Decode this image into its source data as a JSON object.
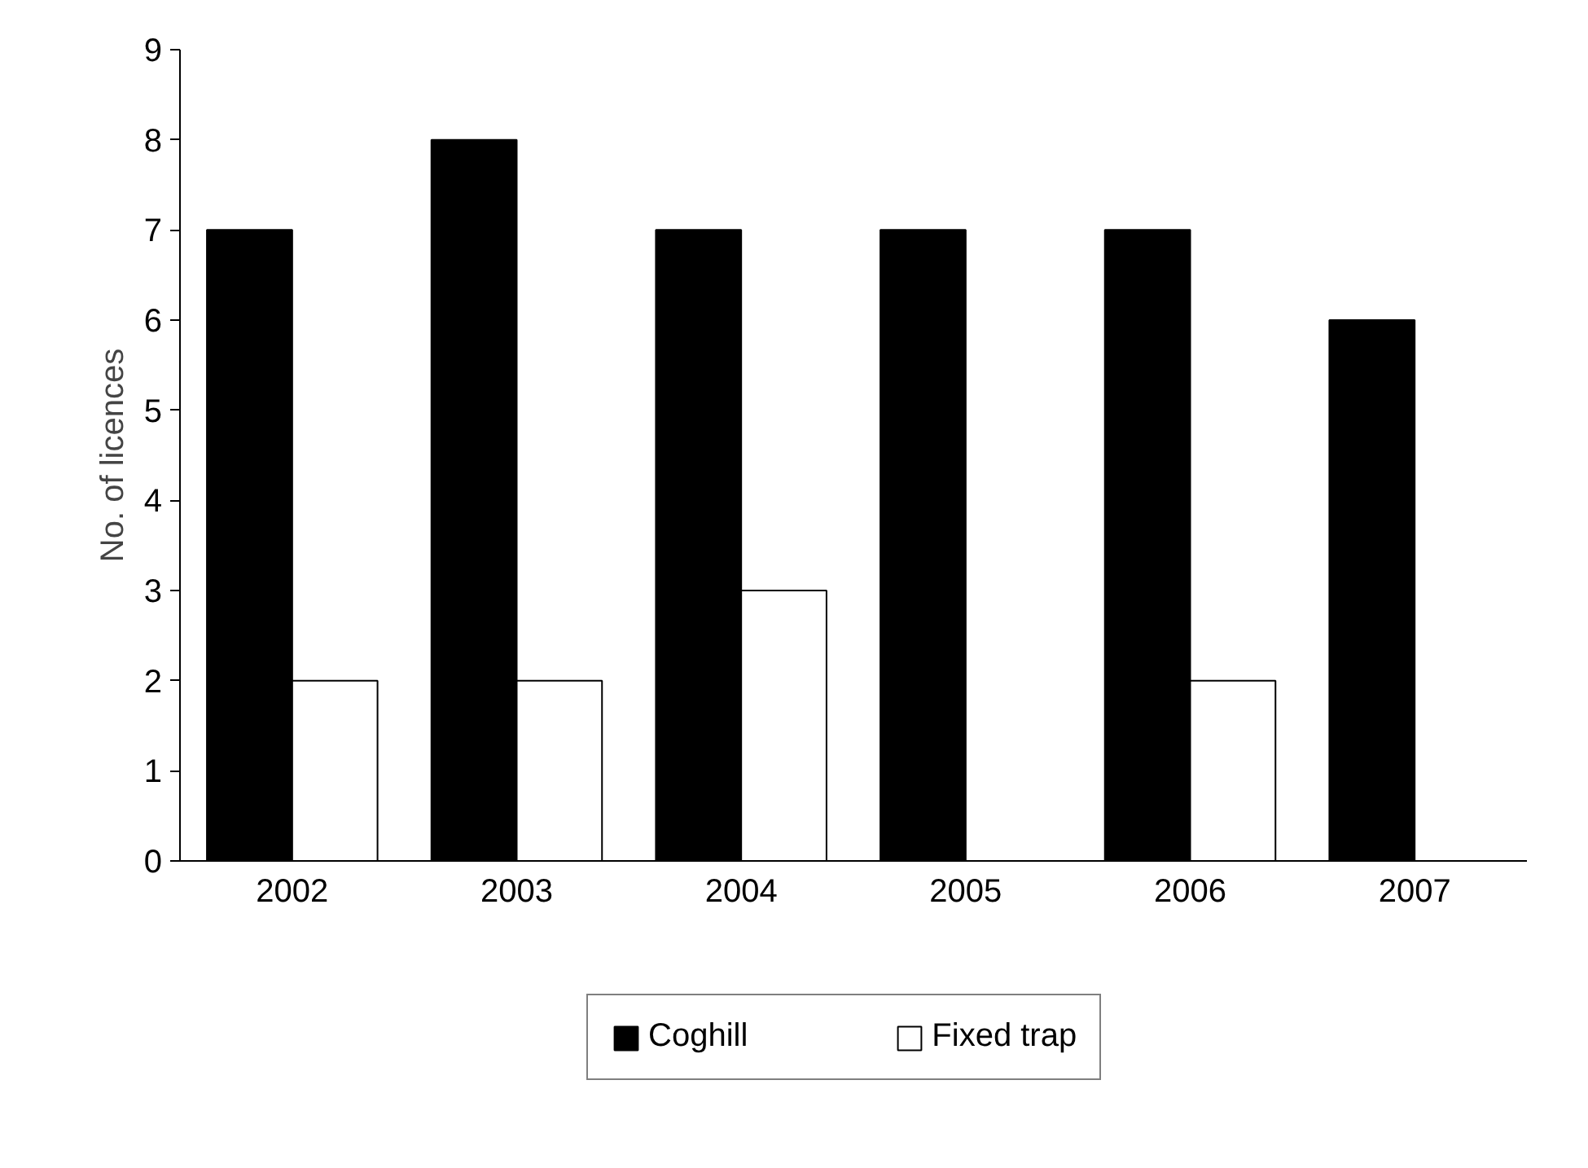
{
  "chart_data": {
    "type": "bar",
    "ylabel": "No. of licences",
    "categories": [
      "2002",
      "2003",
      "2004",
      "2005",
      "2006",
      "2007"
    ],
    "series": [
      {
        "name": "Coghill",
        "color": "#000000",
        "values": [
          7,
          8,
          7,
          7,
          7,
          6
        ]
      },
      {
        "name": "Fixed trap",
        "color": "#ffffff",
        "values": [
          2,
          2,
          3,
          null,
          2,
          null
        ]
      }
    ],
    "ylim": [
      0,
      9
    ],
    "yticks": [
      0,
      1,
      2,
      3,
      4,
      5,
      6,
      7,
      8,
      9
    ],
    "grid": false,
    "legend": "bottom"
  }
}
